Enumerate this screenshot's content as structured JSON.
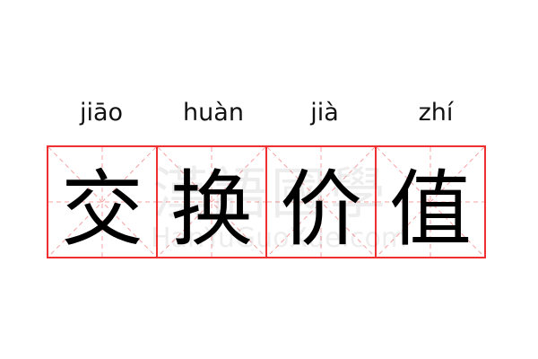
{
  "words": [
    {
      "pinyin": "jiāo",
      "char": "交"
    },
    {
      "pinyin": "huàn",
      "char": "换"
    },
    {
      "pinyin": "jià",
      "char": "价"
    },
    {
      "pinyin": "zhí",
      "char": "值"
    }
  ],
  "watermark": {
    "cn": "漢語國學",
    "en": "HanYuGuoXue.com"
  },
  "colors": {
    "border": "#f03030",
    "guide": "#f5a0a0"
  }
}
